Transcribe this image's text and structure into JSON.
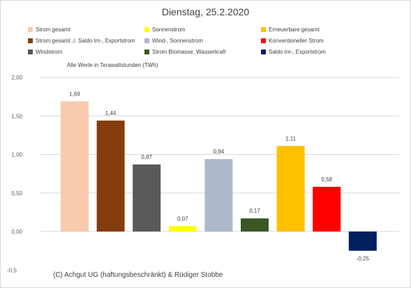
{
  "chart_data": {
    "type": "bar",
    "title": "Dienstag, 25.2.2020",
    "unit_note": "Alle Werte in Terawattstunden (TWh)",
    "categories": [
      "Strom gesamt",
      "Strom gesamt ./. Saldo Im-, Exportstrom",
      "Windstrom",
      "Sonnenstrom",
      "Wind-, Sonnenstrom",
      "Strom Biomasse, Wasserkraft",
      "Erneuerbare gesamt",
      "Konventioneller Strom",
      "Saldo Im-, Exportstrom"
    ],
    "values": [
      1.69,
      1.44,
      0.87,
      0.07,
      0.94,
      0.17,
      1.11,
      0.58,
      -0.25
    ],
    "data_labels": [
      "1,69",
      "1,44",
      "0,87",
      "0,07",
      "0,94",
      "0,17",
      "1,11",
      "0,58",
      "-0,25"
    ],
    "colors": [
      "#f8cbad",
      "#843c0c",
      "#595959",
      "#ffff00",
      "#adb9ca",
      "#385723",
      "#ffc000",
      "#ff0000",
      "#002060"
    ],
    "yticks": [
      "2,00",
      "1,50",
      "1,00",
      "0,50",
      "0,00",
      "-0,5"
    ],
    "ylim": [
      -0.5,
      2.0
    ],
    "grid": true,
    "legend_position": "top"
  },
  "copyright": "(C) Achgut UG (haftungsbeschränkt) & Rüdiger Stobbe"
}
